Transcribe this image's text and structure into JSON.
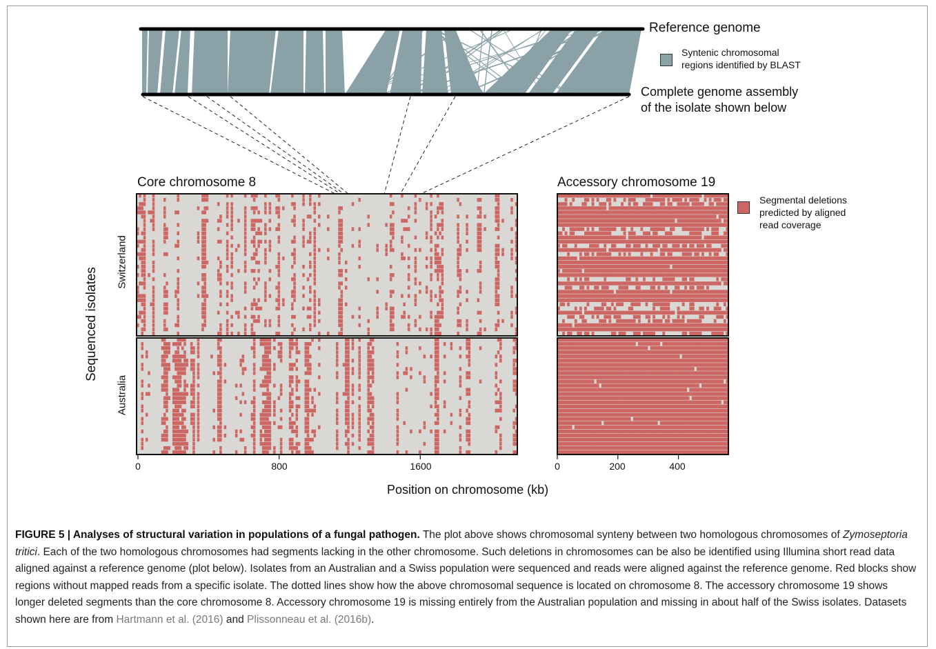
{
  "figure": {
    "synteny": {
      "top_label": "Reference genome",
      "bottom_label_line1": "Complete genome assembly",
      "bottom_label_line2": "of the isolate shown below",
      "legend": {
        "line1": "Syntenic chromosomal",
        "line2": "regions identified by BLAST",
        "color": "#8aa2a7"
      }
    },
    "core": {
      "title": "Core chromosome 8",
      "ticks": [
        "0",
        "800",
        "1600"
      ],
      "tick_values": [
        0,
        800,
        1600
      ],
      "xlim": [
        0,
        2150
      ]
    },
    "accessory": {
      "title": "Accessory chromosome 19",
      "ticks": [
        "0",
        "200",
        "400"
      ],
      "tick_values": [
        0,
        200,
        400
      ],
      "xlim": [
        0,
        565
      ]
    },
    "deletion_legend": {
      "line1": "Segmental deletions",
      "line2": "predicted by aligned",
      "line3": "read coverage",
      "color": "#cc6764"
    },
    "y_axis_label": "Sequenced isolates",
    "groups": [
      "Switzerland",
      "Australia"
    ],
    "x_axis_label": "Position on chromosome (kb)",
    "background_color": "#d9d8d4"
  },
  "caption": {
    "label": "FIGURE 5 | Analyses of structural variation in populations of a fungal pathogen.",
    "text1": " The plot above shows chromosomal synteny between two homologous chromosomes of ",
    "species": "Zymoseptoria tritici",
    "text2": ". Each of the two homologous chromosomes had segments lacking in the other chromosome. Such deletions in chromosomes can be also be identified using Illumina short read data aligned against a reference genome (plot below). Isolates from an Australian and a Swiss population were sequenced and reads were aligned against the reference genome. Red blocks show regions without mapped reads from a specific isolate. The dotted lines show how the above chromosomal sequence is located on chromosome 8. The accessory chromosome 19 shows longer deleted segments than the core chromosome 8. Accessory chromosome 19 is missing entirely from the Australian population and missing in about half of the Swiss isolates. Datasets shown here are from ",
    "cite1": "Hartmann et al. (2016)",
    "and": " and ",
    "cite2": "Plissonneau et al. (2016b)",
    "end": "."
  }
}
